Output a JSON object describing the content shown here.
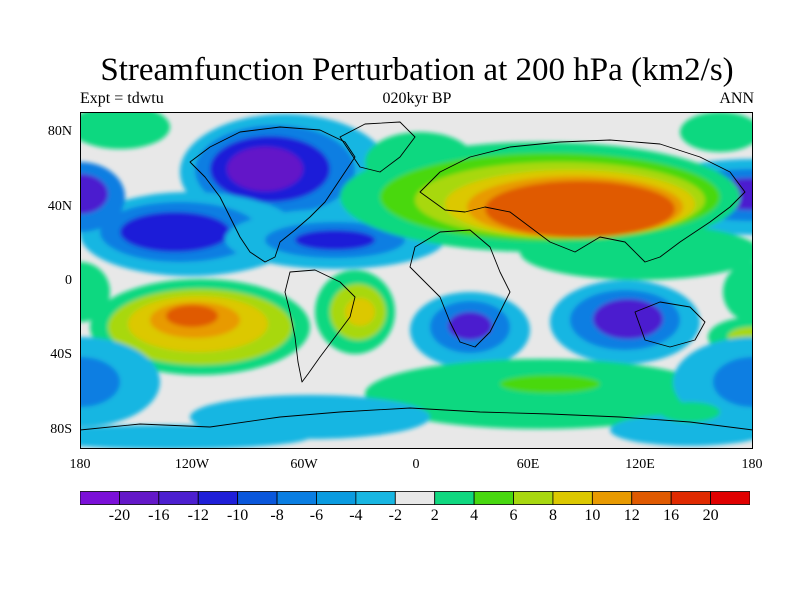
{
  "title": "Streamfunction Perturbation at 200 hPa (km2/s)",
  "left_label": "Expt = tdwtu",
  "center_label": "020kyr BP",
  "right_label": "ANN",
  "map": {
    "background_color": "#e8e8e8",
    "coastline_color": "#000000",
    "lat_labels": [
      "80N",
      "40N",
      "0",
      "40S",
      "80S"
    ],
    "lon_labels": [
      "180",
      "120W",
      "60W",
      "0",
      "60E",
      "120E",
      "180"
    ]
  },
  "colorbar": {
    "colors": [
      "#7b10d8",
      "#6418c8",
      "#4c1fcf",
      "#1f1fd8",
      "#0a57db",
      "#0a7ee2",
      "#0a9be0",
      "#18b6e2",
      "#e8e8e8",
      "#10d880",
      "#48d810",
      "#a8d810",
      "#dcc800",
      "#e89a00",
      "#e05a00",
      "#e02a00",
      "#e00000"
    ],
    "labels": [
      "-20",
      "-16",
      "-12",
      "-10",
      "-8",
      "-6",
      "-4",
      "-2",
      "2",
      "4",
      "6",
      "8",
      "10",
      "12",
      "16",
      "20"
    ]
  }
}
